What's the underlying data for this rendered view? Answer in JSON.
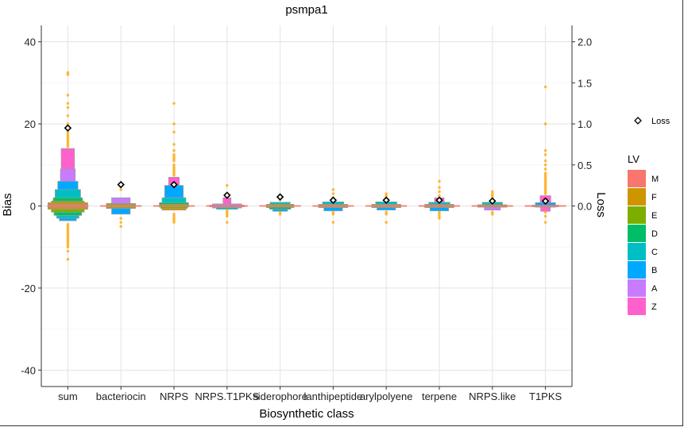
{
  "chart_data": {
    "type": "boxplot-lvplot",
    "title": "psmpa1",
    "xlabel": "Biosynthetic class",
    "ylabel": "Bias",
    "y2label": "Loss",
    "categories": [
      "sum",
      "bacteriocin",
      "NRPS",
      "NRPS.T1PKS",
      "siderophore",
      "lanthipeptide",
      "arylpolyene",
      "terpene",
      "NRPS.like",
      "T1PKS"
    ],
    "ylim": [
      -44,
      44
    ],
    "yticks": [
      -40,
      -20,
      0,
      20,
      40
    ],
    "y2ticks": [
      "0.0",
      "0.5",
      "1.0",
      "1.5",
      "2.0"
    ],
    "y2scale": 20,
    "grid": true,
    "loss": [
      0.95,
      0.26,
      0.26,
      0.13,
      0.11,
      0.07,
      0.07,
      0.07,
      0.06,
      0.06
    ],
    "lv_levels": [
      "M",
      "F",
      "E",
      "D",
      "C",
      "B",
      "A",
      "Z"
    ],
    "lv_colors": {
      "M": "#F8766D",
      "F": "#CD9600",
      "E": "#7CAE00",
      "D": "#00BE67",
      "C": "#00BFC4",
      "B": "#00A9FF",
      "A": "#C77CFF",
      "Z": "#FF61CC"
    },
    "lv_boxes": [
      {
        "class": "sum",
        "boxes": [
          {
            "lv": "Z",
            "lo": 5,
            "hi": 14,
            "w": 0.25
          },
          {
            "lv": "A",
            "lo": 6,
            "hi": 9,
            "w": 0.28
          },
          {
            "lv": "B",
            "lo": 4,
            "hi": 6,
            "w": 0.38
          },
          {
            "lv": "C",
            "lo": 2,
            "hi": 4,
            "w": 0.48
          },
          {
            "lv": "D",
            "lo": 1,
            "hi": 2,
            "w": 0.55
          },
          {
            "lv": "E",
            "lo": 0.5,
            "hi": 1.2,
            "w": 0.62
          },
          {
            "lv": "F",
            "lo": -0.8,
            "hi": 0.8,
            "w": 0.75
          },
          {
            "lv": "M",
            "lo": -0.3,
            "hi": 0.3,
            "w": 0.75
          },
          {
            "lv": "E",
            "lo": -1.5,
            "hi": -0.8,
            "w": 0.62
          },
          {
            "lv": "D",
            "lo": -2.3,
            "hi": -1.5,
            "w": 0.52
          },
          {
            "lv": "C",
            "lo": -3,
            "hi": -2.3,
            "w": 0.42
          },
          {
            "lv": "B",
            "lo": -3.6,
            "hi": -3,
            "w": 0.32
          }
        ]
      },
      {
        "class": "bacteriocin",
        "boxes": [
          {
            "lv": "A",
            "lo": 0.5,
            "hi": 2,
            "w": 0.35
          },
          {
            "lv": "E",
            "lo": -0.6,
            "hi": 0.6,
            "w": 0.55
          },
          {
            "lv": "F",
            "lo": -0.3,
            "hi": 0.3,
            "w": 0.55
          },
          {
            "lv": "B",
            "lo": -2,
            "hi": -0.6,
            "w": 0.35
          }
        ]
      },
      {
        "class": "NRPS",
        "boxes": [
          {
            "lv": "Z",
            "lo": 5,
            "hi": 7,
            "w": 0.2
          },
          {
            "lv": "B",
            "lo": 2,
            "hi": 5,
            "w": 0.35
          },
          {
            "lv": "C",
            "lo": 0.8,
            "hi": 2,
            "w": 0.45
          },
          {
            "lv": "D",
            "lo": -0.3,
            "hi": 0.8,
            "w": 0.55
          },
          {
            "lv": "E",
            "lo": -0.6,
            "hi": 0.4,
            "w": 0.5
          },
          {
            "lv": "F",
            "lo": -1,
            "hi": -0.5,
            "w": 0.45
          }
        ]
      },
      {
        "class": "NRPS.T1PKS",
        "boxes": [
          {
            "lv": "Z",
            "lo": 0.5,
            "hi": 2,
            "w": 0.15
          },
          {
            "lv": "A",
            "lo": -0.5,
            "hi": 0.5,
            "w": 0.55
          },
          {
            "lv": "F",
            "lo": -0.2,
            "hi": 0.2,
            "w": 0.65
          },
          {
            "lv": "C",
            "lo": -0.8,
            "hi": -0.4,
            "w": 0.4
          }
        ]
      },
      {
        "class": "siderophore",
        "boxes": [
          {
            "lv": "C",
            "lo": 0.3,
            "hi": 0.9,
            "w": 0.38
          },
          {
            "lv": "E",
            "lo": -0.4,
            "hi": 0.4,
            "w": 0.52
          },
          {
            "lv": "D",
            "lo": -0.8,
            "hi": -0.3,
            "w": 0.4
          },
          {
            "lv": "B",
            "lo": -1.3,
            "hi": -0.8,
            "w": 0.28
          }
        ]
      },
      {
        "class": "lanthipeptide",
        "boxes": [
          {
            "lv": "C",
            "lo": 0.3,
            "hi": 1,
            "w": 0.4
          },
          {
            "lv": "E",
            "lo": -0.4,
            "hi": 0.4,
            "w": 0.55
          },
          {
            "lv": "F",
            "lo": -0.2,
            "hi": 0.2,
            "w": 0.55
          },
          {
            "lv": "B",
            "lo": -1.2,
            "hi": -0.4,
            "w": 0.35
          }
        ]
      },
      {
        "class": "arylpolyene",
        "boxes": [
          {
            "lv": "C",
            "lo": 0.3,
            "hi": 1,
            "w": 0.4
          },
          {
            "lv": "E",
            "lo": -0.4,
            "hi": 0.4,
            "w": 0.55
          },
          {
            "lv": "F",
            "lo": -0.2,
            "hi": 0.2,
            "w": 0.55
          },
          {
            "lv": "B",
            "lo": -1,
            "hi": -0.4,
            "w": 0.35
          }
        ]
      },
      {
        "class": "terpene",
        "boxes": [
          {
            "lv": "Z",
            "lo": 0.8,
            "hi": 2,
            "w": 0.18
          },
          {
            "lv": "C",
            "lo": 0.3,
            "hi": 0.9,
            "w": 0.4
          },
          {
            "lv": "E",
            "lo": -0.4,
            "hi": 0.4,
            "w": 0.55
          },
          {
            "lv": "F",
            "lo": -0.2,
            "hi": 0.2,
            "w": 0.55
          },
          {
            "lv": "B",
            "lo": -1.2,
            "hi": -0.4,
            "w": 0.35
          }
        ]
      },
      {
        "class": "NRPS.like",
        "boxes": [
          {
            "lv": "C",
            "lo": 0.3,
            "hi": 0.9,
            "w": 0.38
          },
          {
            "lv": "E",
            "lo": -0.3,
            "hi": 0.3,
            "w": 0.55
          },
          {
            "lv": "A",
            "lo": -1,
            "hi": -0.3,
            "w": 0.3
          }
        ]
      },
      {
        "class": "T1PKS",
        "boxes": [
          {
            "lv": "Z",
            "lo": 0.5,
            "hi": 2.5,
            "w": 0.2
          },
          {
            "lv": "B",
            "lo": -0.3,
            "hi": 0.8,
            "w": 0.38
          },
          {
            "lv": "C",
            "lo": -0.2,
            "hi": 0.2,
            "w": 0.5
          },
          {
            "lv": "Z",
            "lo": -1.3,
            "hi": -0.3,
            "w": 0.18
          }
        ]
      }
    ],
    "outliers": [
      {
        "class": "sum",
        "values": [
          32.5,
          32,
          27,
          25,
          24,
          22,
          20,
          18,
          17.5,
          17,
          16.5,
          16,
          15.5,
          15,
          14.5,
          -4.5,
          -5,
          -5.5,
          -6,
          -6.5,
          -7,
          -7.5,
          -8,
          -8.5,
          -9,
          -9.5,
          -10,
          -11,
          -13
        ]
      },
      {
        "class": "bacteriocin",
        "values": [
          5,
          4,
          -3,
          -4,
          -5
        ]
      },
      {
        "class": "NRPS",
        "values": [
          25,
          20,
          18,
          15,
          13.5,
          12.5,
          12,
          11.5,
          11,
          10,
          9.5,
          9,
          8.5,
          8,
          7.5,
          -2,
          -2.5,
          -3,
          -3.5,
          -4
        ]
      },
      {
        "class": "NRPS.T1PKS",
        "values": [
          5,
          3,
          2.5,
          -1,
          -1.5,
          -2,
          -2.5,
          -4
        ]
      },
      {
        "class": "siderophore",
        "values": [
          2,
          1.5,
          -1.5,
          -2
        ]
      },
      {
        "class": "lanthipeptide",
        "values": [
          4,
          3,
          2,
          -1.5,
          -2,
          -4
        ]
      },
      {
        "class": "arylpolyene",
        "values": [
          3,
          2.5,
          2,
          -1.5,
          -2,
          -4
        ]
      },
      {
        "class": "terpene",
        "values": [
          6,
          4.5,
          3.5,
          2.5,
          -1.5,
          -2,
          -2.5,
          -3
        ]
      },
      {
        "class": "NRPS.like",
        "values": [
          3.5,
          3,
          2.5,
          2,
          1.5,
          -1.5,
          -2
        ]
      },
      {
        "class": "T1PKS",
        "values": [
          29,
          20,
          13.5,
          12.5,
          11,
          10,
          9,
          8,
          7.5,
          7,
          6.5,
          6,
          5.5,
          5,
          4.5,
          4,
          3.5,
          3,
          -1.5,
          -2.5,
          -4
        ]
      }
    ],
    "outlier_color": "#FFA500",
    "legend": {
      "loss_label": "Loss",
      "lv_title": "LV",
      "position": "right"
    }
  }
}
